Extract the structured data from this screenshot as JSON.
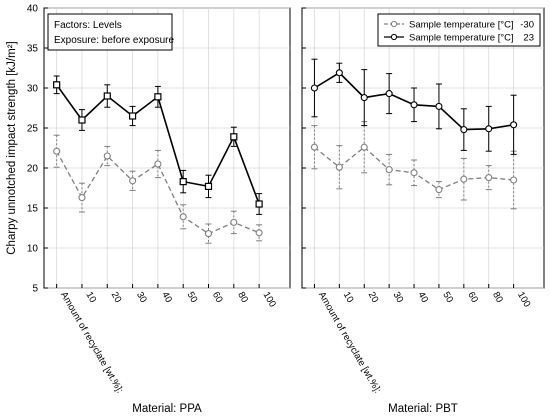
{
  "chart_data": {
    "type": "line",
    "ylabel": "Charpy unnotched impact strength [kJ/m²]",
    "ylim": [
      5,
      40
    ],
    "yticks": [
      5,
      10,
      15,
      20,
      25,
      30,
      35,
      40
    ],
    "grid": true,
    "categories": [
      "Amount of recyclate [wt.%]:",
      "10",
      "20",
      "30",
      "40",
      "50",
      "60",
      "80",
      "100"
    ],
    "panels": [
      {
        "material_label": "Material: PPA",
        "annotation": [
          "Factors: Levels",
          "Exposure: before exposure"
        ],
        "series": [
          {
            "name": "-30",
            "legend_text": "Sample temperature [°C]",
            "style": "dashed",
            "marker": "circle",
            "color": "#7f7f7f",
            "values": [
              22.1,
              16.3,
              21.5,
              18.4,
              20.5,
              13.9,
              11.8,
              13.2,
              11.9
            ],
            "err": [
              2.0,
              1.8,
              1.2,
              1.2,
              1.7,
              1.5,
              1.2,
              1.4,
              1.0
            ]
          },
          {
            "name": "23",
            "legend_text": "Sample temperature [°C]",
            "style": "solid",
            "marker": "square",
            "color": "#000000",
            "values": [
              30.4,
              26.0,
              29.0,
              26.5,
              28.9,
              18.3,
              17.7,
              23.9,
              15.5
            ],
            "err": [
              1.1,
              1.3,
              1.4,
              1.2,
              1.3,
              1.4,
              1.4,
              1.2,
              1.3
            ]
          }
        ]
      },
      {
        "material_label": "Material: PBT",
        "legend": [
          {
            "label": "Sample temperature [°C]",
            "value": "-30"
          },
          {
            "label": "Sample temperature [°C]",
            "value": "23"
          }
        ],
        "series": [
          {
            "name": "-30",
            "legend_text": "Sample temperature [°C]",
            "style": "dashed",
            "marker": "circle",
            "color": "#7f7f7f",
            "values": [
              22.6,
              20.1,
              22.6,
              19.8,
              19.4,
              17.3,
              18.6,
              18.8,
              18.5
            ],
            "err": [
              2.7,
              2.7,
              3.2,
              1.9,
              1.6,
              1.0,
              2.6,
              1.5,
              3.6
            ]
          },
          {
            "name": "23",
            "legend_text": "Sample temperature [°C]",
            "style": "solid",
            "marker": "circle",
            "color": "#000000",
            "values": [
              30.0,
              31.9,
              28.8,
              29.3,
              27.9,
              27.7,
              24.8,
              24.9,
              25.4
            ],
            "err": [
              3.6,
              1.2,
              3.5,
              2.5,
              2.1,
              2.8,
              2.6,
              2.8,
              3.7
            ]
          }
        ]
      }
    ]
  }
}
